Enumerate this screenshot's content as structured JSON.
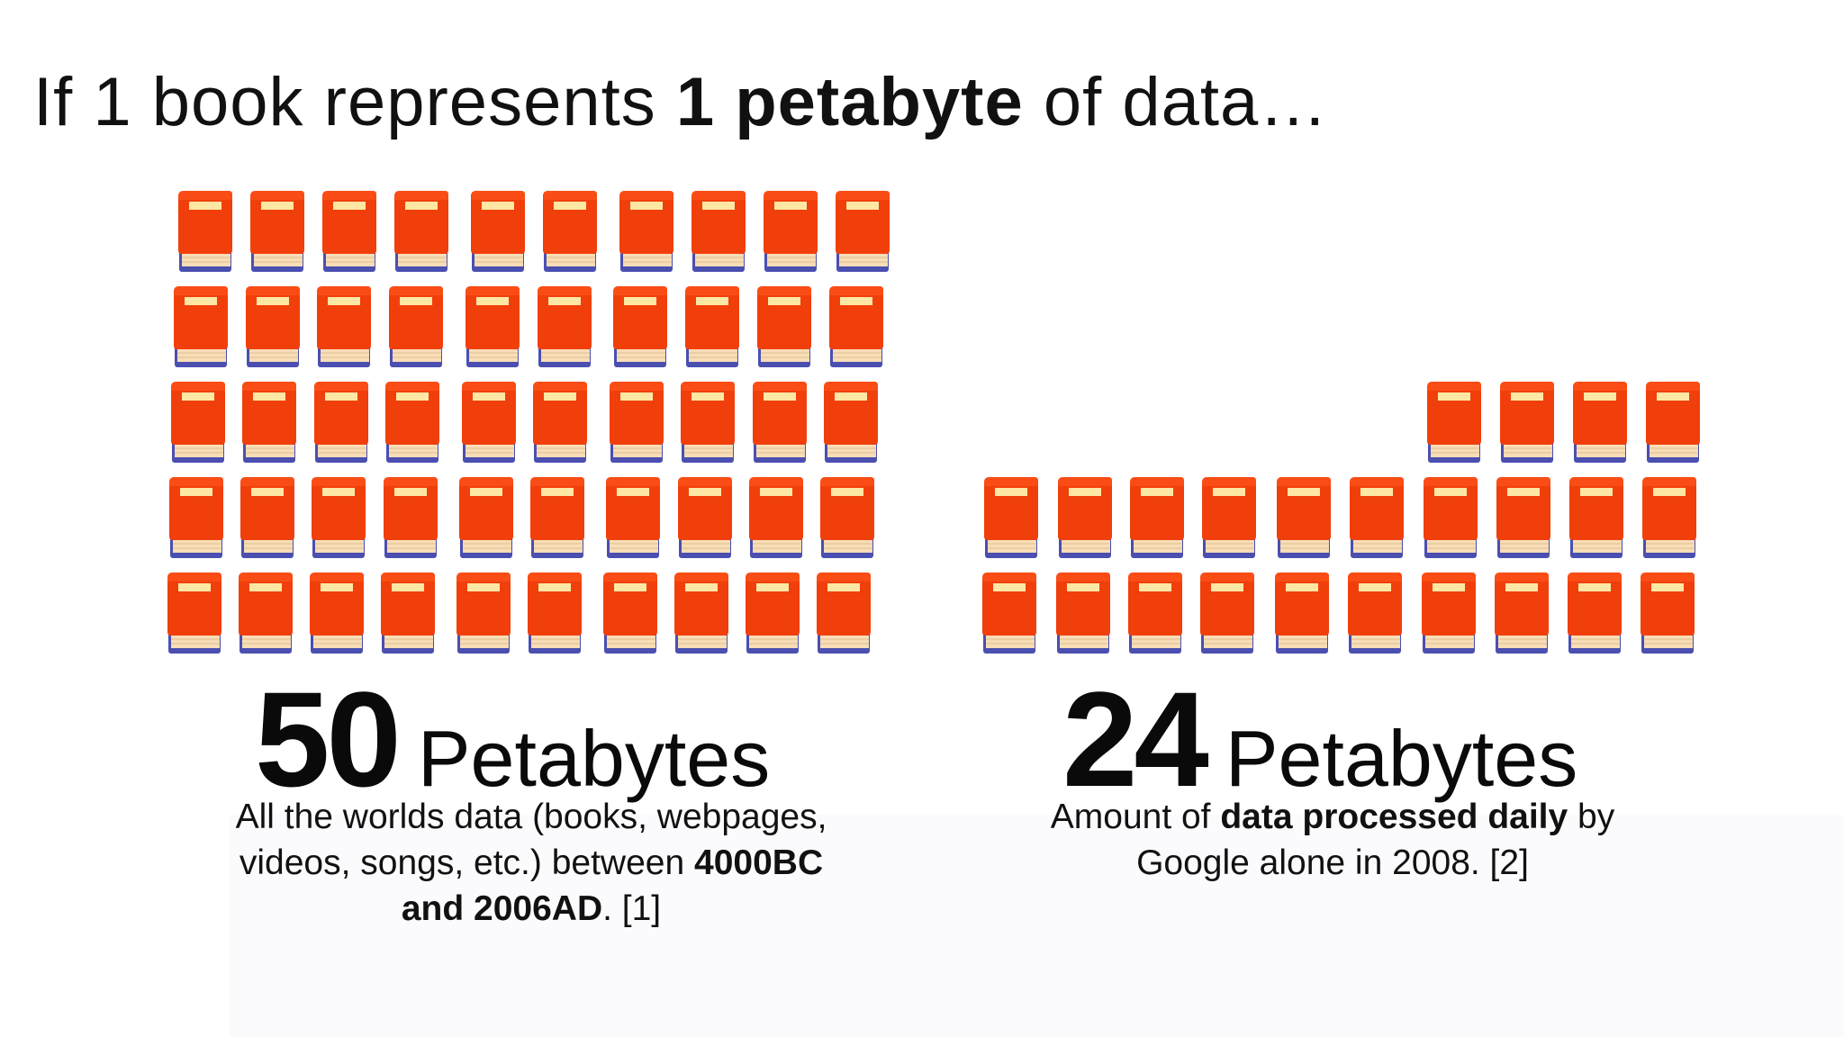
{
  "headline": {
    "prefix": "If 1 book represents ",
    "bold": "1 petabyte",
    "suffix": " of data…"
  },
  "left_block": {
    "books_shown": 50,
    "number": "50",
    "unit": "Petabytes",
    "caption": {
      "line1": "All the worlds data (books, webpages,",
      "line2_plain": "videos, songs, etc.) between ",
      "line2_bold": "4000BC",
      "line3_bold": "and 2006AD",
      "line3_tail": ". [1]"
    }
  },
  "right_block": {
    "books_shown": 24,
    "number": "24",
    "unit": "Petabytes",
    "caption": {
      "line1_plain": "Amount of ",
      "line1_bold": "data processed daily",
      "line1_tail": " by",
      "line2": "Google alone in 2008. [2]"
    }
  },
  "colors": {
    "book_cover": "#f13f0c",
    "book_cover_top": "#ff5a1e",
    "book_label": "#fde7a4",
    "book_pages": "#f7ddb8",
    "book_spine": "#4a4fb0",
    "text": "#111111"
  },
  "icons": {
    "book": "closed-book-icon"
  }
}
